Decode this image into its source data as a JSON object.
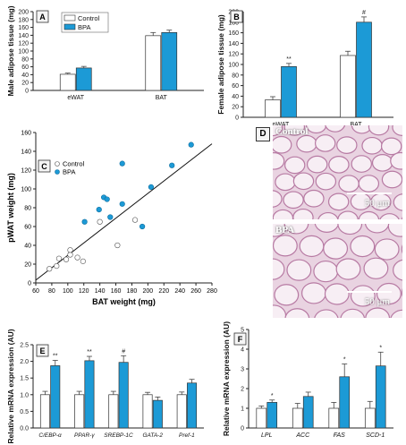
{
  "colors": {
    "control": "#ffffff",
    "bpa": "#1c9ad6",
    "axis": "#222222",
    "grid": "#cccccc"
  },
  "chart_data": [
    {
      "panel": "A",
      "type": "bar",
      "ylabel": "Male adipose tissue (mg)",
      "categories": [
        "eWAT",
        "BAT"
      ],
      "ylim": [
        0,
        200
      ],
      "yticks": [
        0,
        20,
        40,
        60,
        80,
        100,
        120,
        140,
        160,
        180,
        200
      ],
      "legend": [
        "Control",
        "BPA"
      ],
      "legend_position": "top-left",
      "series": [
        {
          "name": "Control",
          "values": [
            41,
            139
          ],
          "errors": [
            3,
            8
          ]
        },
        {
          "name": "BPA",
          "values": [
            57,
            147
          ],
          "errors": [
            4,
            6
          ]
        }
      ],
      "annotations": [
        "",
        ""
      ]
    },
    {
      "panel": "B",
      "type": "bar",
      "ylabel": "Female adipose tissue (mg)",
      "categories": [
        "pWAT",
        "BAT"
      ],
      "ylim": [
        0,
        200
      ],
      "yticks": [
        0,
        20,
        40,
        60,
        80,
        100,
        120,
        140,
        160,
        180,
        200
      ],
      "series": [
        {
          "name": "Control",
          "values": [
            33,
            117
          ],
          "errors": [
            6,
            8
          ]
        },
        {
          "name": "BPA",
          "values": [
            96,
            180
          ],
          "errors": [
            6,
            10
          ]
        }
      ],
      "annotations": [
        "**",
        "#"
      ]
    },
    {
      "panel": "C",
      "type": "scatter",
      "xlabel": "BAT weight (mg)",
      "ylabel": "pWAT weight (mg)",
      "xlim": [
        60,
        280
      ],
      "ylim": [
        0,
        160
      ],
      "xticks": [
        60,
        80,
        100,
        120,
        140,
        160,
        180,
        200,
        220,
        240,
        260,
        280
      ],
      "yticks": [
        0,
        20,
        40,
        60,
        80,
        100,
        120,
        140,
        160
      ],
      "legend": [
        "Control",
        "BPA"
      ],
      "legend_position": "top-left",
      "series": [
        {
          "name": "Control",
          "points": [
            [
              77,
              15
            ],
            [
              86,
              18
            ],
            [
              89,
              26
            ],
            [
              98,
              25
            ],
            [
              103,
              30
            ],
            [
              103,
              35
            ],
            [
              112,
              27
            ],
            [
              119,
              23
            ],
            [
              140,
              65
            ],
            [
              162,
              40
            ],
            [
              184,
              67
            ]
          ]
        },
        {
          "name": "BPA",
          "points": [
            [
              121,
              65
            ],
            [
              139,
              78
            ],
            [
              145,
              91
            ],
            [
              149,
              89
            ],
            [
              153,
              70
            ],
            [
              168,
              84
            ],
            [
              168,
              127
            ],
            [
              193,
              60
            ],
            [
              204,
              102
            ],
            [
              230,
              125
            ],
            [
              254,
              147
            ]
          ]
        }
      ],
      "trendline": [
        [
          60,
          3
        ],
        [
          280,
          148
        ]
      ]
    },
    {
      "panel": "E",
      "type": "bar",
      "ylabel": "Relative mRNA expression (AU)",
      "categories": [
        "C/EBP-α",
        "PPAR-γ",
        "SREBP-1C",
        "GATA-2",
        "Pref-1"
      ],
      "ylim": [
        0,
        2.5
      ],
      "yticks": [
        0,
        0.5,
        1.0,
        1.5,
        2.0,
        2.5
      ],
      "series": [
        {
          "name": "Control",
          "values": [
            1.0,
            1.0,
            1.0,
            1.0,
            1.0
          ],
          "errors": [
            0.1,
            0.1,
            0.1,
            0.07,
            0.08
          ]
        },
        {
          "name": "BPA",
          "values": [
            1.87,
            2.02,
            1.97,
            0.83,
            1.35
          ],
          "errors": [
            0.16,
            0.13,
            0.2,
            0.1,
            0.11
          ]
        }
      ],
      "annotations": [
        "**",
        "**",
        "#",
        "",
        ""
      ]
    },
    {
      "panel": "F",
      "type": "bar",
      "ylabel": "Relative mRNA expression (AU)",
      "categories": [
        "LPL",
        "ACC",
        "FAS",
        "SCD-1"
      ],
      "ylim": [
        0,
        5
      ],
      "yticks": [
        0,
        1,
        2,
        3,
        4,
        5
      ],
      "series": [
        {
          "name": "Control",
          "values": [
            1.0,
            1.0,
            1.0,
            1.0
          ],
          "errors": [
            0.12,
            0.25,
            0.3,
            0.35
          ]
        },
        {
          "name": "BPA",
          "values": [
            1.3,
            1.6,
            2.6,
            3.15
          ],
          "errors": [
            0.12,
            0.22,
            0.65,
            0.7
          ]
        }
      ],
      "annotations": [
        "*",
        "",
        "*",
        "*"
      ]
    }
  ],
  "micrographs": {
    "panel": "D",
    "top": {
      "label": "Control",
      "scale": "50 μm"
    },
    "bottom": {
      "label": "BPA",
      "scale": "50 μm"
    }
  }
}
